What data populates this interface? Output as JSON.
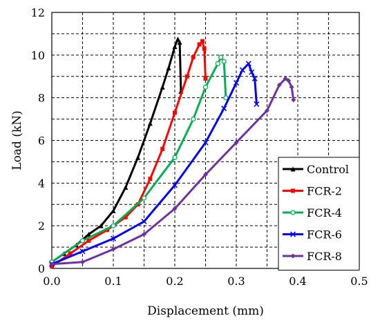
{
  "chart_data": {
    "type": "line",
    "title": "",
    "xlabel": "Displacement (mm)",
    "ylabel": "Load (kN)",
    "xlim": [
      0,
      0.5
    ],
    "ylim": [
      0,
      12
    ],
    "xticks": [
      "0.0",
      "0.1",
      "0.2",
      "0.3",
      "0.4",
      "0.5"
    ],
    "yticks": [
      "0",
      "2",
      "4",
      "6",
      "8",
      "10",
      "12"
    ],
    "grid": true,
    "legend_position": "bottom-right",
    "series": [
      {
        "name": "Control",
        "color": "#000000",
        "marker": "triangle",
        "points": [
          [
            0.0,
            0.3
          ],
          [
            0.02,
            0.7
          ],
          [
            0.04,
            1.1
          ],
          [
            0.06,
            1.6
          ],
          [
            0.08,
            2.0
          ],
          [
            0.1,
            2.7
          ],
          [
            0.12,
            3.8
          ],
          [
            0.14,
            5.2
          ],
          [
            0.16,
            6.8
          ],
          [
            0.18,
            8.5
          ],
          [
            0.19,
            9.4
          ],
          [
            0.2,
            10.4
          ],
          [
            0.205,
            10.75
          ],
          [
            0.208,
            10.6
          ],
          [
            0.21,
            8.3
          ]
        ]
      },
      {
        "name": "FCR-2",
        "color": "#ff0000",
        "marker": "square",
        "points": [
          [
            0.0,
            0.1
          ],
          [
            0.03,
            0.7
          ],
          [
            0.06,
            1.3
          ],
          [
            0.09,
            1.8
          ],
          [
            0.12,
            2.4
          ],
          [
            0.14,
            3.0
          ],
          [
            0.16,
            4.2
          ],
          [
            0.18,
            5.6
          ],
          [
            0.2,
            7.3
          ],
          [
            0.22,
            9.0
          ],
          [
            0.23,
            9.9
          ],
          [
            0.24,
            10.5
          ],
          [
            0.245,
            10.65
          ],
          [
            0.248,
            10.3
          ],
          [
            0.25,
            8.9
          ]
        ]
      },
      {
        "name": "FCR-4",
        "color": "#00b050",
        "marker": "circle",
        "points": [
          [
            0.0,
            0.3
          ],
          [
            0.05,
            1.3
          ],
          [
            0.1,
            2.0
          ],
          [
            0.15,
            3.3
          ],
          [
            0.2,
            5.2
          ],
          [
            0.23,
            7.0
          ],
          [
            0.25,
            8.5
          ],
          [
            0.27,
            9.6
          ],
          [
            0.275,
            9.9
          ],
          [
            0.28,
            9.7
          ],
          [
            0.283,
            8.0
          ]
        ]
      },
      {
        "name": "FCR-6",
        "color": "#0000ff",
        "marker": "x",
        "points": [
          [
            0.0,
            0.2
          ],
          [
            0.05,
            0.8
          ],
          [
            0.1,
            1.4
          ],
          [
            0.15,
            2.2
          ],
          [
            0.2,
            3.9
          ],
          [
            0.25,
            5.9
          ],
          [
            0.28,
            7.5
          ],
          [
            0.3,
            8.7
          ],
          [
            0.31,
            9.3
          ],
          [
            0.32,
            9.6
          ],
          [
            0.325,
            9.2
          ],
          [
            0.33,
            8.9
          ],
          [
            0.333,
            7.7
          ]
        ]
      },
      {
        "name": "FCR-8",
        "color": "#7030a0",
        "marker": "diamond",
        "points": [
          [
            0.0,
            0.2
          ],
          [
            0.05,
            0.3
          ],
          [
            0.1,
            0.9
          ],
          [
            0.15,
            1.6
          ],
          [
            0.2,
            2.8
          ],
          [
            0.25,
            4.4
          ],
          [
            0.3,
            5.9
          ],
          [
            0.35,
            7.4
          ],
          [
            0.37,
            8.6
          ],
          [
            0.38,
            8.9
          ],
          [
            0.385,
            8.8
          ],
          [
            0.39,
            8.5
          ],
          [
            0.393,
            7.9
          ]
        ]
      }
    ]
  }
}
